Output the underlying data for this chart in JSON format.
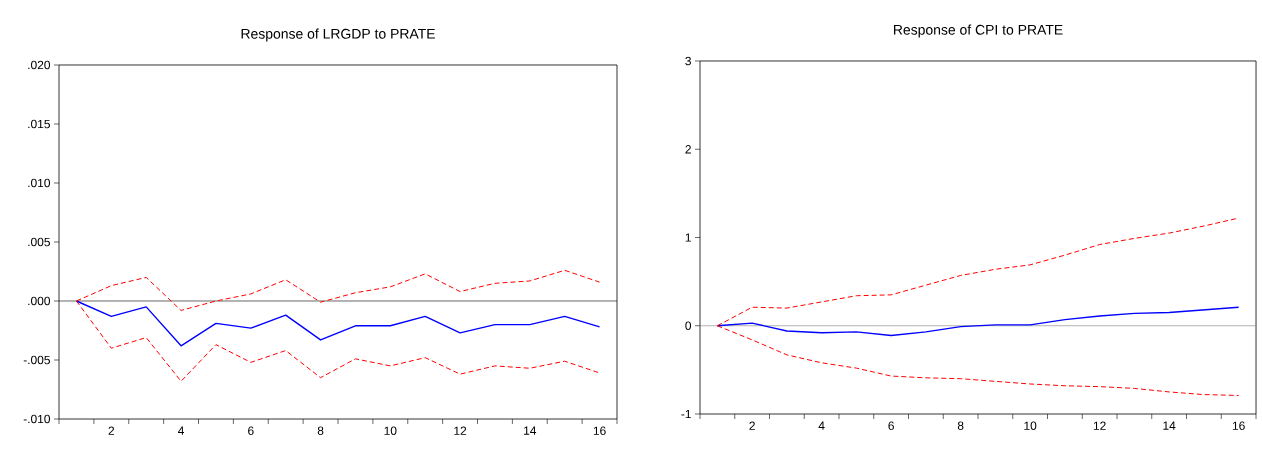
{
  "chart_data": [
    {
      "type": "line",
      "title": "Response of LRGDP to PRATE",
      "x": [
        1,
        2,
        3,
        4,
        5,
        6,
        7,
        8,
        9,
        10,
        11,
        12,
        13,
        14,
        15,
        16
      ],
      "series": [
        {
          "color": "#0000ff",
          "line_style": "solid",
          "values": [
            0,
            -0.0013,
            -0.0005,
            -0.0038,
            -0.0019,
            -0.0023,
            -0.0012,
            -0.0033,
            -0.0021,
            -0.0021,
            -0.0013,
            -0.0027,
            -0.002,
            -0.002,
            -0.0013,
            -0.0022
          ]
        },
        {
          "color": "#ff0000",
          "line_style": "dashed",
          "values": [
            0,
            0.0013,
            0.002,
            -0.0008,
            0.0,
            0.0006,
            0.0018,
            -0.0001,
            0.0007,
            0.0012,
            0.0023,
            0.0008,
            0.0015,
            0.0017,
            0.0026,
            0.0016
          ]
        },
        {
          "color": "#ff0000",
          "line_style": "dashed",
          "values": [
            0,
            -0.004,
            -0.0031,
            -0.0068,
            -0.0037,
            -0.0052,
            -0.0042,
            -0.0065,
            -0.0049,
            -0.0055,
            -0.0048,
            -0.0062,
            -0.0055,
            -0.0057,
            -0.0051,
            -0.0061
          ]
        }
      ],
      "xlim": [
        0.5,
        16.5
      ],
      "xticks": [
        {
          "value": 0.5,
          "label": null
        },
        {
          "value": 1.5,
          "label": null
        },
        {
          "value": 2,
          "label": "2"
        },
        {
          "value": 2.5,
          "label": null
        },
        {
          "value": 3.5,
          "label": null
        },
        {
          "value": 4,
          "label": "4"
        },
        {
          "value": 4.5,
          "label": null
        },
        {
          "value": 5.5,
          "label": null
        },
        {
          "value": 6,
          "label": "6"
        },
        {
          "value": 6.5,
          "label": null
        },
        {
          "value": 7.5,
          "label": null
        },
        {
          "value": 8,
          "label": "8"
        },
        {
          "value": 8.5,
          "label": null
        },
        {
          "value": 9.5,
          "label": null
        },
        {
          "value": 10,
          "label": "10"
        },
        {
          "value": 10.5,
          "label": null
        },
        {
          "value": 11.5,
          "label": null
        },
        {
          "value": 12,
          "label": "12"
        },
        {
          "value": 12.5,
          "label": null
        },
        {
          "value": 13.5,
          "label": null
        },
        {
          "value": 14,
          "label": "14"
        },
        {
          "value": 14.5,
          "label": null
        },
        {
          "value": 15.5,
          "label": null
        },
        {
          "value": 16,
          "label": "16"
        },
        {
          "value": 16.5,
          "label": null
        }
      ],
      "ylim": [
        -0.01,
        0.02
      ],
      "yticks": [
        {
          "value": -0.01,
          "label": "-.010"
        },
        {
          "value": -0.005,
          "label": "-.005"
        },
        {
          "value": 0.0,
          "label": ".000"
        },
        {
          "value": 0.005,
          "label": ".005"
        },
        {
          "value": 0.01,
          "label": ".010"
        },
        {
          "value": 0.015,
          "label": ".015"
        },
        {
          "value": 0.02,
          "label": ".020"
        }
      ],
      "ref_lines": [
        {
          "axis": "y",
          "value": 0,
          "color": "#000000"
        }
      ]
    },
    {
      "type": "line",
      "title": "Response of CPI to PRATE",
      "x": [
        1,
        2,
        3,
        4,
        5,
        6,
        7,
        8,
        9,
        10,
        11,
        12,
        13,
        14,
        15,
        16
      ],
      "series": [
        {
          "color": "#0000ff",
          "line_style": "solid",
          "values": [
            0,
            0.03,
            -0.06,
            -0.08,
            -0.07,
            -0.11,
            -0.07,
            -0.01,
            0.01,
            0.01,
            0.07,
            0.11,
            0.14,
            0.15,
            0.18,
            0.21
          ]
        },
        {
          "color": "#ff0000",
          "line_style": "dashed",
          "values": [
            0,
            0.21,
            0.2,
            0.27,
            0.34,
            0.35,
            0.46,
            0.57,
            0.64,
            0.69,
            0.8,
            0.92,
            0.99,
            1.05,
            1.13,
            1.22
          ]
        },
        {
          "color": "#ff0000",
          "line_style": "dashed",
          "values": [
            0,
            -0.16,
            -0.33,
            -0.42,
            -0.48,
            -0.57,
            -0.59,
            -0.6,
            -0.63,
            -0.66,
            -0.68,
            -0.69,
            -0.71,
            -0.75,
            -0.78,
            -0.79
          ]
        }
      ],
      "xlim": [
        0.5,
        16.5
      ],
      "xticks": [
        {
          "value": 0.5,
          "label": null
        },
        {
          "value": 1.5,
          "label": null
        },
        {
          "value": 2,
          "label": "2"
        },
        {
          "value": 2.5,
          "label": null
        },
        {
          "value": 3.5,
          "label": null
        },
        {
          "value": 4,
          "label": "4"
        },
        {
          "value": 4.5,
          "label": null
        },
        {
          "value": 5.5,
          "label": null
        },
        {
          "value": 6,
          "label": "6"
        },
        {
          "value": 6.5,
          "label": null
        },
        {
          "value": 7.5,
          "label": null
        },
        {
          "value": 8,
          "label": "8"
        },
        {
          "value": 8.5,
          "label": null
        },
        {
          "value": 9.5,
          "label": null
        },
        {
          "value": 10,
          "label": "10"
        },
        {
          "value": 10.5,
          "label": null
        },
        {
          "value": 11.5,
          "label": null
        },
        {
          "value": 12,
          "label": "12"
        },
        {
          "value": 12.5,
          "label": null
        },
        {
          "value": 13.5,
          "label": null
        },
        {
          "value": 14,
          "label": "14"
        },
        {
          "value": 14.5,
          "label": null
        },
        {
          "value": 15.5,
          "label": null
        },
        {
          "value": 16,
          "label": "16"
        },
        {
          "value": 16.5,
          "label": null
        }
      ],
      "ylim": [
        -1,
        3
      ],
      "yticks": [
        -1,
        0,
        1,
        2,
        3
      ],
      "ref_lines": [
        {
          "axis": "y",
          "value": 0,
          "color": "#808080"
        }
      ]
    }
  ]
}
